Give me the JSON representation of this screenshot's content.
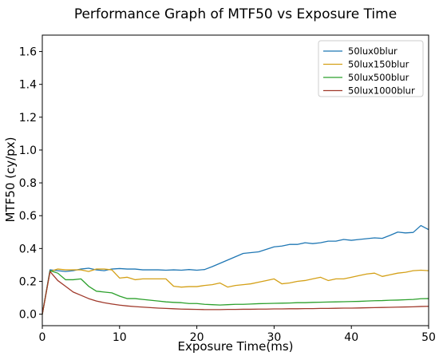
{
  "chart_data": {
    "type": "line",
    "title": "Performance Graph of MTF50 vs Exposure Time",
    "xlabel": "Exposure Time(ms)",
    "ylabel": "MTF50 (cy/px)",
    "xlim": [
      0,
      50
    ],
    "ylim": [
      -0.07,
      1.7
    ],
    "xticks": [
      0,
      10,
      20,
      30,
      40,
      50
    ],
    "yticks": [
      0.0,
      0.2,
      0.4,
      0.6,
      0.8,
      1.0,
      1.2,
      1.4,
      1.6
    ],
    "ytick_labels": [
      "0.0",
      "0.2",
      "0.4",
      "0.6",
      "0.8",
      "1.0",
      "1.2",
      "1.4",
      "1.6"
    ],
    "grid": false,
    "legend_position": "top-right",
    "x": [
      0,
      1,
      2,
      3,
      4,
      5,
      6,
      7,
      8,
      9,
      10,
      11,
      12,
      13,
      14,
      15,
      16,
      17,
      18,
      19,
      20,
      21,
      22,
      23,
      24,
      25,
      26,
      27,
      28,
      29,
      30,
      31,
      32,
      33,
      34,
      35,
      36,
      37,
      38,
      39,
      40,
      41,
      42,
      43,
      44,
      45,
      46,
      47,
      48,
      49,
      50
    ],
    "series": [
      {
        "name": "50lux0blur",
        "color": "#1f77b4",
        "values": [
          0.0,
          0.27,
          0.265,
          0.26,
          0.265,
          0.275,
          0.28,
          0.27,
          0.265,
          0.275,
          0.278,
          0.275,
          0.275,
          0.27,
          0.27,
          0.27,
          0.268,
          0.27,
          0.268,
          0.272,
          0.268,
          0.272,
          0.29,
          0.31,
          0.33,
          0.35,
          0.37,
          0.375,
          0.38,
          0.395,
          0.41,
          0.415,
          0.425,
          0.425,
          0.435,
          0.43,
          0.435,
          0.445,
          0.445,
          0.455,
          0.45,
          0.455,
          0.46,
          0.465,
          0.462,
          0.48,
          0.5,
          0.495,
          0.498,
          0.54,
          0.515
        ]
      },
      {
        "name": "50lux150blur",
        "color": "#d4a017",
        "values": [
          0.0,
          0.26,
          0.275,
          0.27,
          0.27,
          0.27,
          0.26,
          0.275,
          0.275,
          0.27,
          0.22,
          0.225,
          0.21,
          0.215,
          0.215,
          0.215,
          0.215,
          0.17,
          0.165,
          0.168,
          0.168,
          0.175,
          0.18,
          0.19,
          0.165,
          0.175,
          0.18,
          0.185,
          0.195,
          0.205,
          0.215,
          0.185,
          0.19,
          0.2,
          0.205,
          0.215,
          0.225,
          0.205,
          0.215,
          0.215,
          0.225,
          0.235,
          0.245,
          0.25,
          0.23,
          0.24,
          0.25,
          0.255,
          0.265,
          0.268,
          0.265
        ]
      },
      {
        "name": "50lux500blur",
        "color": "#2ca02c",
        "values": [
          0.0,
          0.265,
          0.25,
          0.21,
          0.21,
          0.215,
          0.17,
          0.14,
          0.135,
          0.13,
          0.11,
          0.095,
          0.095,
          0.09,
          0.085,
          0.08,
          0.075,
          0.072,
          0.07,
          0.065,
          0.065,
          0.06,
          0.058,
          0.056,
          0.058,
          0.06,
          0.06,
          0.062,
          0.064,
          0.065,
          0.066,
          0.067,
          0.068,
          0.07,
          0.07,
          0.072,
          0.073,
          0.074,
          0.075,
          0.076,
          0.077,
          0.078,
          0.08,
          0.082,
          0.083,
          0.085,
          0.086,
          0.088,
          0.09,
          0.094,
          0.095
        ]
      },
      {
        "name": "50lux1000blur",
        "color": "#a0392b",
        "values": [
          0.0,
          0.26,
          0.205,
          0.17,
          0.135,
          0.115,
          0.095,
          0.08,
          0.07,
          0.062,
          0.055,
          0.05,
          0.046,
          0.043,
          0.04,
          0.037,
          0.035,
          0.033,
          0.031,
          0.03,
          0.029,
          0.028,
          0.028,
          0.028,
          0.029,
          0.029,
          0.03,
          0.03,
          0.031,
          0.031,
          0.032,
          0.032,
          0.033,
          0.033,
          0.034,
          0.034,
          0.035,
          0.035,
          0.036,
          0.037,
          0.037,
          0.038,
          0.039,
          0.04,
          0.041,
          0.042,
          0.043,
          0.044,
          0.045,
          0.047,
          0.048
        ]
      }
    ]
  }
}
